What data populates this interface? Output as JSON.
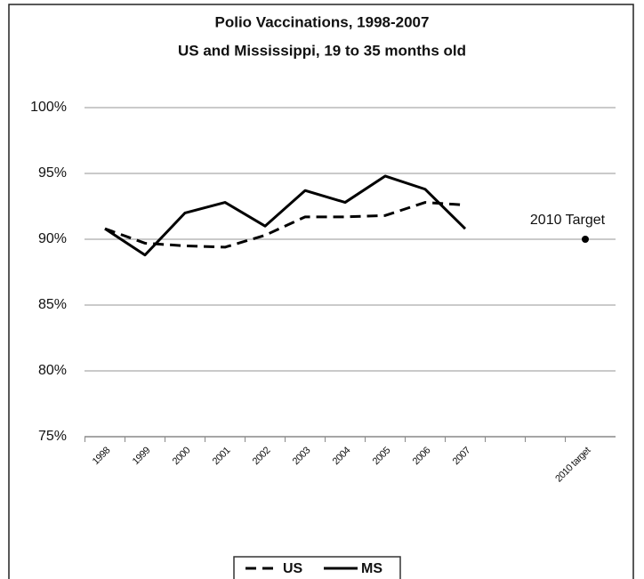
{
  "chart_data": {
    "type": "line",
    "title": "Polio Vaccinations, 1998-2007",
    "subtitle": "US and Mississippi, 19 to 35 months old",
    "categories": [
      "1998",
      "1999",
      "2000",
      "2001",
      "2002",
      "2003",
      "2004",
      "2005",
      "2006",
      "2007",
      null,
      null,
      "2010 target"
    ],
    "series": [
      {
        "name": "US",
        "color": "#000000",
        "dash": true,
        "values": [
          90.8,
          89.7,
          89.5,
          89.4,
          90.3,
          91.7,
          91.7,
          91.8,
          92.8,
          92.6,
          null,
          null,
          null
        ]
      },
      {
        "name": "MS",
        "color": "#000000",
        "dash": false,
        "values": [
          90.8,
          88.8,
          92.0,
          92.8,
          91.0,
          93.7,
          92.8,
          94.8,
          93.8,
          90.8,
          null,
          null,
          null
        ]
      }
    ],
    "target": {
      "label": "2010 Target",
      "value": 90
    },
    "ylim": [
      75,
      100
    ],
    "yticks": [
      {
        "value": 75,
        "label": "75%"
      },
      {
        "value": 80,
        "label": "80%"
      },
      {
        "value": 85,
        "label": "85%"
      },
      {
        "value": 90,
        "label": "90%"
      },
      {
        "value": 95,
        "label": "95%"
      },
      {
        "value": 100,
        "label": "100%"
      }
    ],
    "grid": true,
    "legend": "bottom"
  }
}
